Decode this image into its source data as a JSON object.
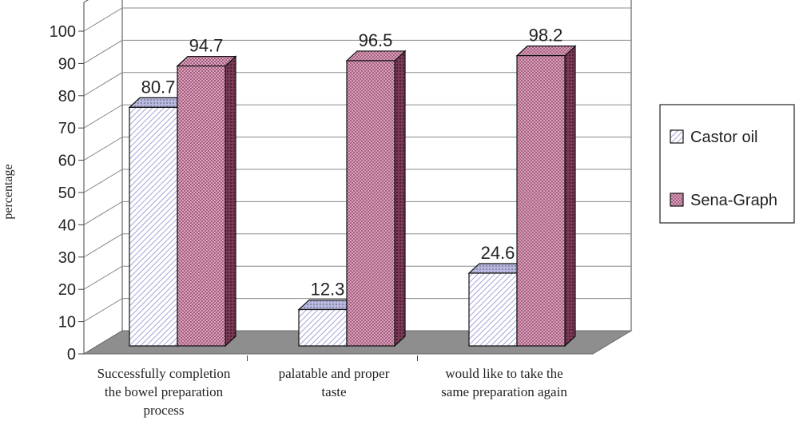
{
  "chart_data": {
    "type": "bar",
    "ylabel": "percentage",
    "ylim": [
      0,
      100
    ],
    "yticks": [
      0,
      10,
      20,
      30,
      40,
      50,
      60,
      70,
      80,
      90,
      100
    ],
    "categories": [
      [
        "Successfully completion",
        "the bowel preparation",
        "process"
      ],
      [
        "palatable and proper",
        "taste"
      ],
      [
        "would like to take the",
        "same preparation again"
      ]
    ],
    "series": [
      {
        "name": "Castor oil",
        "values": [
          80.7,
          12.3,
          24.6
        ],
        "color": "#c8c8f0"
      },
      {
        "name": "Sena-Graph",
        "values": [
          94.7,
          96.5,
          98.2
        ],
        "color": "#c888a8"
      }
    ],
    "legend": "right"
  }
}
